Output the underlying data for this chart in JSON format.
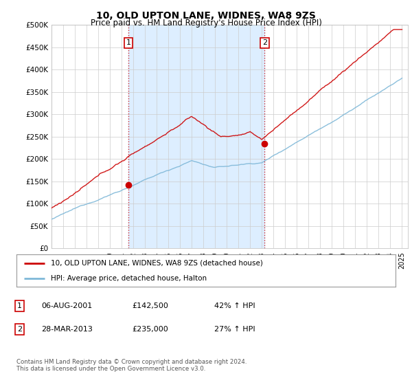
{
  "title": "10, OLD UPTON LANE, WIDNES, WA8 9ZS",
  "subtitle": "Price paid vs. HM Land Registry's House Price Index (HPI)",
  "ytick_values": [
    0,
    50000,
    100000,
    150000,
    200000,
    250000,
    300000,
    350000,
    400000,
    450000,
    500000
  ],
  "ylim": [
    0,
    500000
  ],
  "xlim_start": 1995.0,
  "xlim_end": 2025.5,
  "hpi_color": "#7fb8d8",
  "price_color": "#cc0000",
  "sale1_year": 2001.58,
  "sale1_price": 142500,
  "sale2_year": 2013.24,
  "sale2_price": 235000,
  "vline_color": "#cc0000",
  "shade_color": "#ddeeff",
  "legend_label_price": "10, OLD UPTON LANE, WIDNES, WA8 9ZS (detached house)",
  "legend_label_hpi": "HPI: Average price, detached house, Halton",
  "table_row1": [
    "1",
    "06-AUG-2001",
    "£142,500",
    "42% ↑ HPI"
  ],
  "table_row2": [
    "2",
    "28-MAR-2013",
    "£235,000",
    "27% ↑ HPI"
  ],
  "footer": "Contains HM Land Registry data © Crown copyright and database right 2024.\nThis data is licensed under the Open Government Licence v3.0.",
  "background_color": "#ffffff",
  "grid_color": "#cccccc",
  "title_fontsize": 10,
  "subtitle_fontsize": 8.5,
  "tick_fontsize": 7.5
}
